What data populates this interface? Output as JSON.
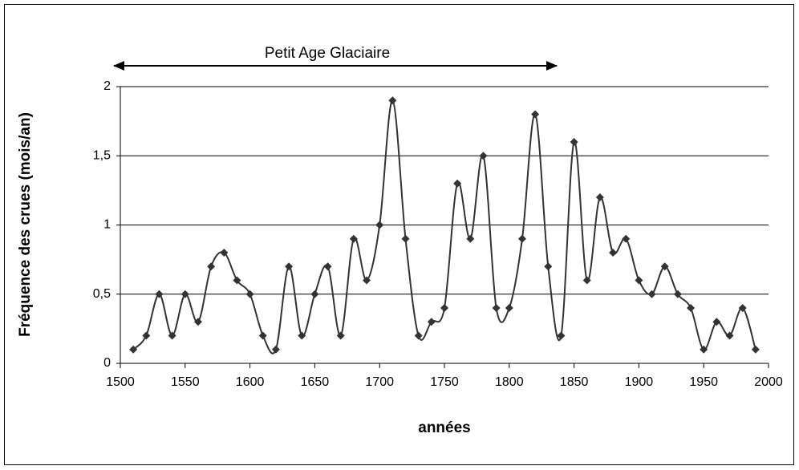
{
  "chart_data": {
    "type": "line",
    "annotation": "Petit Age Glaciaire",
    "x_label": "années",
    "y_label": "Fréquence des crues (mois/an)",
    "x": [
      1510,
      1520,
      1530,
      1540,
      1550,
      1560,
      1570,
      1580,
      1590,
      1600,
      1610,
      1620,
      1630,
      1640,
      1650,
      1660,
      1670,
      1680,
      1690,
      1700,
      1710,
      1720,
      1730,
      1740,
      1750,
      1760,
      1770,
      1780,
      1790,
      1800,
      1810,
      1820,
      1830,
      1840,
      1850,
      1860,
      1870,
      1880,
      1890,
      1900,
      1910,
      1920,
      1930,
      1940,
      1950,
      1960,
      1970,
      1980,
      1990
    ],
    "series": [
      {
        "color": "#333333",
        "values": [
          0.1,
          0.2,
          0.5,
          0.2,
          0.5,
          0.3,
          0.7,
          0.8,
          0.6,
          0.5,
          0.2,
          0.1,
          0.7,
          0.2,
          0.5,
          0.7,
          0.2,
          0.9,
          0.6,
          1.0,
          1.9,
          0.9,
          0.2,
          0.3,
          0.4,
          1.3,
          0.9,
          1.5,
          0.4,
          0.4,
          0.9,
          1.8,
          0.7,
          0.2,
          1.6,
          0.6,
          1.2,
          0.8,
          0.9,
          0.6,
          0.5,
          0.7,
          0.5,
          0.4,
          0.1,
          0.3,
          0.2,
          0.4,
          0.1
        ]
      }
    ],
    "xlim": [
      1500,
      2000
    ],
    "xticks": [
      1500,
      1550,
      1600,
      1650,
      1700,
      1750,
      1800,
      1850,
      1900,
      1950,
      2000
    ],
    "ylim": [
      0,
      2
    ],
    "yticks": [
      0,
      {
        "value": 0.5,
        "label": "0,5"
      },
      1,
      {
        "value": 1.5,
        "label": "1,5"
      },
      2
    ],
    "grid": true
  }
}
